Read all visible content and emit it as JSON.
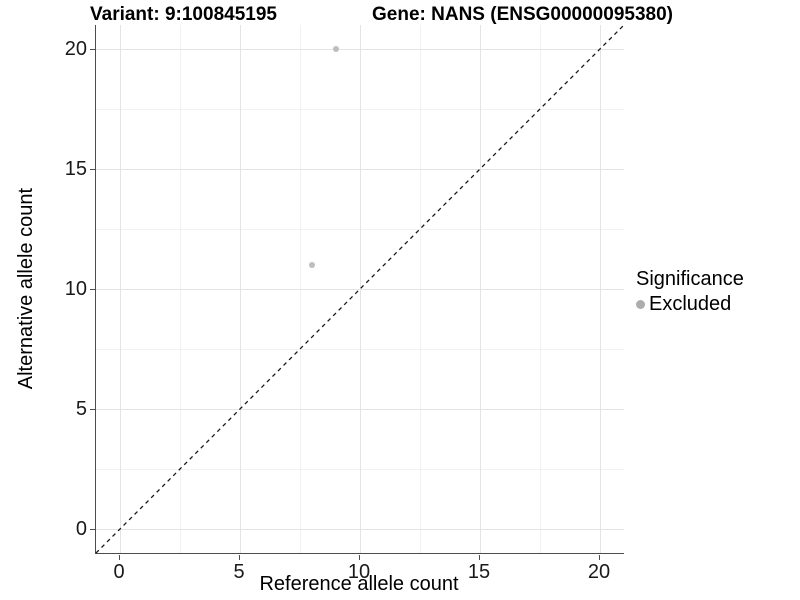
{
  "header": {
    "title_left": "Variant: 9:100845195",
    "title_right": "Gene: NANS (ENSG00000095380)"
  },
  "chart_data": {
    "type": "scatter",
    "title": "Variant: 9:100845195    Gene: NANS (ENSG00000095380)",
    "xlabel": "Reference allele count",
    "ylabel": "Alternative allele count",
    "xlim": [
      -1,
      21
    ],
    "ylim": [
      -1,
      21
    ],
    "x_ticks": [
      0,
      5,
      10,
      15,
      20
    ],
    "y_ticks": [
      0,
      5,
      10,
      15,
      20
    ],
    "x_minor_ticks": [
      2.5,
      7.5,
      12.5,
      17.5
    ],
    "y_minor_ticks": [
      2.5,
      7.5,
      12.5,
      17.5
    ],
    "grid": "major and minor gridlines, light grey on white",
    "reference_line": {
      "style": "dashed",
      "from": [
        -1,
        -1
      ],
      "to": [
        21,
        21
      ],
      "color": "#1a1a1a"
    },
    "series": [
      {
        "name": "Excluded",
        "color": "#bdbdbd",
        "point_radius": 3,
        "points": [
          {
            "x": 9,
            "y": 20
          },
          {
            "x": 8,
            "y": 11
          }
        ]
      }
    ],
    "legend": {
      "position": "right",
      "title": "Significance",
      "items": [
        {
          "label": "Excluded",
          "color": "#adadad"
        }
      ]
    }
  },
  "colors": {
    "background": "#ffffff",
    "axis_line": "#4d4d4d",
    "grid_major": "#e4e4e4",
    "grid_minor": "#f2f2f2",
    "text": "#000000"
  }
}
